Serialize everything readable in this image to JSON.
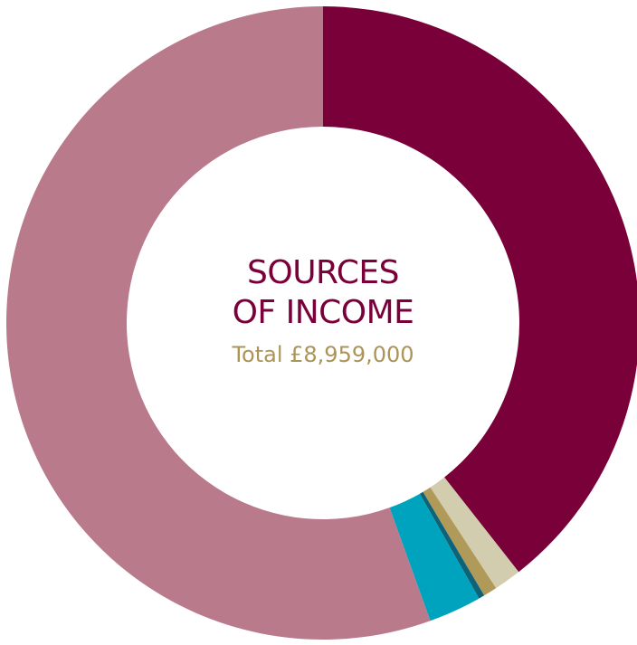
{
  "chart_data": {
    "type": "donut",
    "title": "SOURCES OF INCOME",
    "subtitle": "Total £8,959,000",
    "categories": [
      null,
      null,
      null,
      null,
      null,
      null
    ],
    "values": [
      39.4,
      1.4,
      0.7,
      0.3,
      2.7,
      55.5
    ],
    "colors": [
      "#7a0039",
      "#d3cdaf",
      "#b09a5a",
      "#0f6378",
      "#00a3bd",
      "#b97a8b"
    ]
  }
}
